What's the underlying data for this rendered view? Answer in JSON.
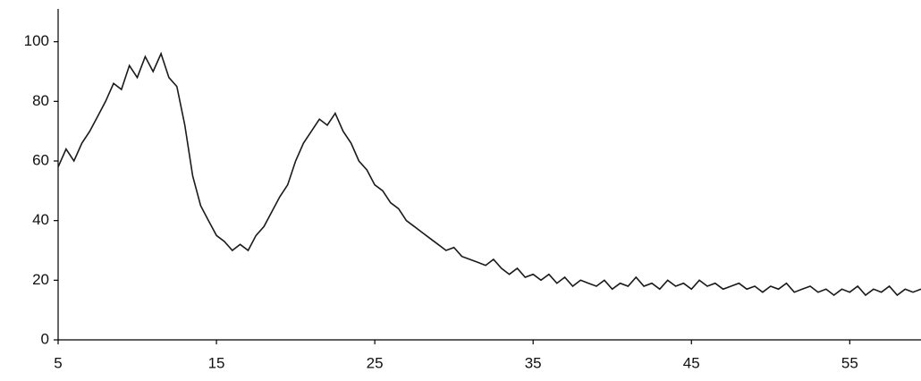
{
  "chart_data": {
    "type": "line",
    "x": [
      5,
      5.5,
      6,
      6.5,
      7,
      7.5,
      8,
      8.5,
      9,
      9.5,
      10,
      10.5,
      11,
      11.5,
      12,
      12.5,
      13,
      13.5,
      14,
      14.5,
      15,
      15.5,
      16,
      16.5,
      17,
      17.5,
      18,
      18.5,
      19,
      19.5,
      20,
      20.5,
      21,
      21.5,
      22,
      22.5,
      23,
      23.5,
      24,
      24.5,
      25,
      25.5,
      26,
      26.5,
      27,
      27.5,
      28,
      28.5,
      29,
      29.5,
      30,
      30.5,
      31,
      31.5,
      32,
      32.5,
      33,
      33.5,
      34,
      34.5,
      35,
      35.5,
      36,
      36.5,
      37,
      37.5,
      38,
      38.5,
      39,
      39.5,
      40,
      40.5,
      41,
      41.5,
      42,
      42.5,
      43,
      43.5,
      44,
      44.5,
      45,
      45.5,
      46,
      46.5,
      47,
      47.5,
      48,
      48.5,
      49,
      49.5,
      50,
      50.5,
      51,
      51.5,
      52,
      52.5,
      53,
      53.5,
      54,
      54.5,
      55,
      55.5,
      56,
      56.5,
      57,
      57.5,
      58,
      58.5,
      59,
      59.5
    ],
    "series": [
      {
        "color": "#1a1a1a",
        "values": [
          58,
          64,
          60,
          66,
          70,
          75,
          80,
          86,
          84,
          92,
          88,
          95,
          90,
          96,
          88,
          85,
          72,
          55,
          45,
          40,
          35,
          33,
          30,
          32,
          30,
          35,
          38,
          43,
          48,
          52,
          60,
          66,
          70,
          74,
          72,
          76,
          70,
          66,
          60,
          57,
          52,
          50,
          46,
          44,
          40,
          38,
          36,
          34,
          32,
          30,
          31,
          28,
          27,
          26,
          25,
          27,
          24,
          22,
          24,
          21,
          22,
          20,
          22,
          19,
          21,
          18,
          20,
          19,
          18,
          20,
          17,
          19,
          18,
          21,
          18,
          19,
          17,
          20,
          18,
          19,
          17,
          20,
          18,
          19,
          17,
          18,
          19,
          17,
          18,
          16,
          18,
          17,
          19,
          16,
          17,
          18,
          16,
          17,
          15,
          17,
          16,
          18,
          15,
          17,
          16,
          18,
          15,
          17,
          16,
          17
        ]
      }
    ],
    "xlim": [
      5,
      59.5
    ],
    "xticks": [
      5,
      15,
      25,
      35,
      45,
      55
    ],
    "ylim": [
      0,
      111
    ],
    "yticks": [
      0,
      20,
      40,
      60,
      80,
      100
    ]
  }
}
